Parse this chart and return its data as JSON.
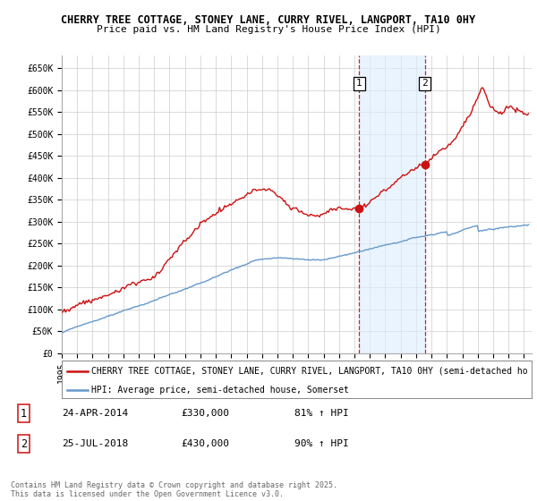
{
  "title": "CHERRY TREE COTTAGE, STONEY LANE, CURRY RIVEL, LANGPORT, TA10 0HY",
  "subtitle": "Price paid vs. HM Land Registry's House Price Index (HPI)",
  "yticks": [
    0,
    50000,
    100000,
    150000,
    200000,
    250000,
    300000,
    350000,
    400000,
    450000,
    500000,
    550000,
    600000,
    650000
  ],
  "ytick_labels": [
    "£0",
    "£50K",
    "£100K",
    "£150K",
    "£200K",
    "£250K",
    "£300K",
    "£350K",
    "£400K",
    "£450K",
    "£500K",
    "£550K",
    "£600K",
    "£650K"
  ],
  "xmin": 1995.0,
  "xmax": 2025.5,
  "ymin": 0,
  "ymax": 680000,
  "sale1_x": 2014.31,
  "sale1_y": 330000,
  "sale1_label": "1",
  "sale2_x": 2018.56,
  "sale2_y": 430000,
  "sale2_label": "2",
  "shade_color": "#ddeeff",
  "shade_alpha": 0.6,
  "dashed_color": "#cc2222",
  "property_line_color": "#cc1111",
  "hpi_line_color": "#6699cc",
  "legend_property": "CHERRY TREE COTTAGE, STONEY LANE, CURRY RIVEL, LANGPORT, TA10 0HY (semi-detached ho",
  "legend_hpi": "HPI: Average price, semi-detached house, Somerset",
  "annotation1_date": "24-APR-2014",
  "annotation1_price": "£330,000",
  "annotation1_hpi": "81% ↑ HPI",
  "annotation2_date": "25-JUL-2018",
  "annotation2_price": "£430,000",
  "annotation2_hpi": "90% ↑ HPI",
  "footnote": "Contains HM Land Registry data © Crown copyright and database right 2025.\nThis data is licensed under the Open Government Licence v3.0.",
  "background_color": "#ffffff",
  "grid_color": "#cccccc",
  "title_fontsize": 8.5,
  "subtitle_fontsize": 8,
  "tick_fontsize": 7,
  "legend_fontsize": 7,
  "annotation_fontsize": 8,
  "footnote_fontsize": 6
}
